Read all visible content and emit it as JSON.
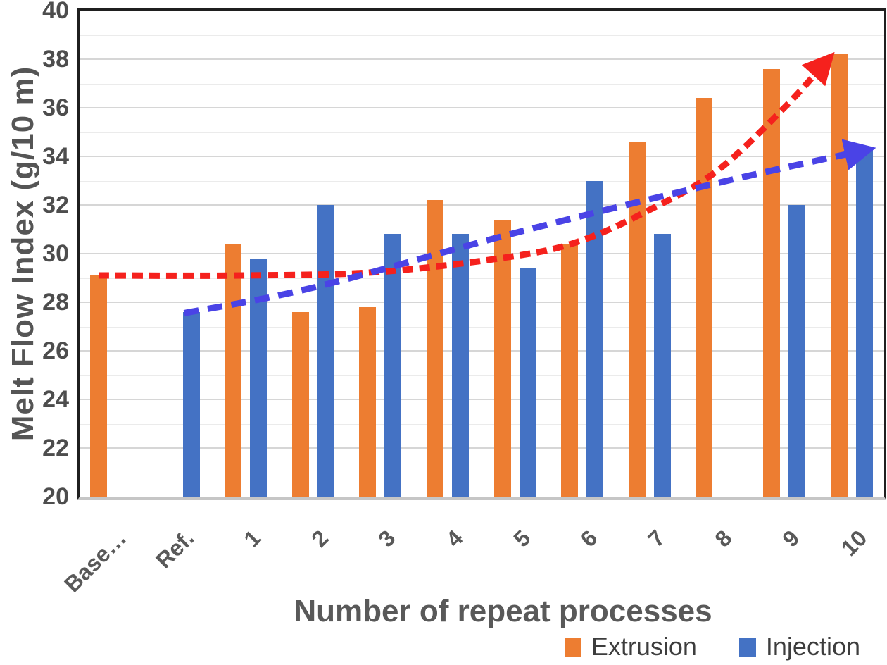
{
  "chart_data": {
    "type": "bar",
    "title": "",
    "xlabel": "Number of repeat processes",
    "ylabel": "Melt Flow Index (g/10 m)",
    "categories": [
      "Base…",
      "Ref.",
      "1",
      "2",
      "3",
      "4",
      "5",
      "6",
      "7",
      "8",
      "9",
      "10"
    ],
    "series": [
      {
        "name": "Extrusion",
        "color": "#ED7D31",
        "values": [
          29.1,
          null,
          30.4,
          27.6,
          27.8,
          32.2,
          31.4,
          30.4,
          34.6,
          36.4,
          37.6,
          38.2
        ]
      },
      {
        "name": "Injection",
        "color": "#4472C4",
        "values": [
          null,
          27.6,
          29.8,
          32.0,
          30.8,
          30.8,
          29.4,
          33.0,
          30.8,
          null,
          32.0,
          34.4
        ]
      }
    ],
    "ylim": [
      20,
      40
    ],
    "yticks": [
      20,
      22,
      24,
      26,
      28,
      30,
      32,
      34,
      36,
      38,
      40
    ],
    "ytick_step": 2,
    "grid": "horizontal minor every 1, major every 2",
    "legend_position": "bottom-right",
    "trendlines": [
      {
        "name": "extrusion-trend",
        "color": "#f5211d",
        "style": "dashed",
        "arrow": true,
        "points": [
          [
            0,
            29.1,
            -18
          ],
          [
            2,
            29.1,
            0
          ],
          [
            4,
            29.25,
            0
          ],
          [
            6,
            29.9,
            0
          ],
          [
            7,
            30.55,
            0
          ],
          [
            8,
            31.8,
            0
          ],
          [
            9,
            33.4,
            0
          ],
          [
            10,
            36.0,
            0
          ],
          [
            11,
            38.1,
            -30
          ]
        ]
      },
      {
        "name": "injection-trend",
        "color": "#4a43e6",
        "style": "dashed",
        "arrow": true,
        "points": [
          [
            1,
            27.55,
            8
          ],
          [
            3,
            28.6,
            0
          ],
          [
            6,
            30.85,
            0
          ],
          [
            9,
            32.9,
            0
          ],
          [
            11,
            34.3,
            26
          ]
        ]
      }
    ]
  },
  "legend": {
    "extrusion": "Extrusion",
    "injection": "Injection"
  }
}
